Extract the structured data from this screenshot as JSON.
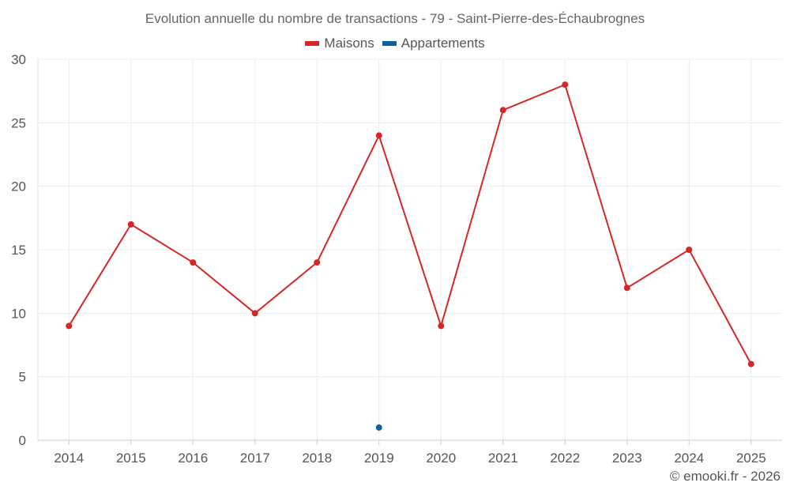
{
  "chart_data": {
    "type": "line",
    "title": "Evolution annuelle du nombre de transactions - 79 - Saint-Pierre-des-Échaubrognes",
    "categories": [
      "2014",
      "2015",
      "2016",
      "2017",
      "2018",
      "2019",
      "2020",
      "2021",
      "2022",
      "2023",
      "2024",
      "2025"
    ],
    "series": [
      {
        "name": "Maisons",
        "color": "#d62728",
        "values": [
          9,
          17,
          14,
          10,
          14,
          24,
          9,
          26,
          28,
          12,
          15,
          6
        ]
      },
      {
        "name": "Appartements",
        "color": "#0b64a0",
        "values": [
          null,
          null,
          null,
          null,
          null,
          1,
          null,
          null,
          null,
          null,
          null,
          null
        ]
      }
    ],
    "ylim": [
      0,
      30
    ],
    "yticks": [
      "0",
      "5",
      "10",
      "15",
      "20",
      "25",
      "30"
    ],
    "xlabel": "",
    "ylabel": "",
    "grid": true,
    "legend": "top-center"
  },
  "credit": "© emooki.fr - 2026"
}
